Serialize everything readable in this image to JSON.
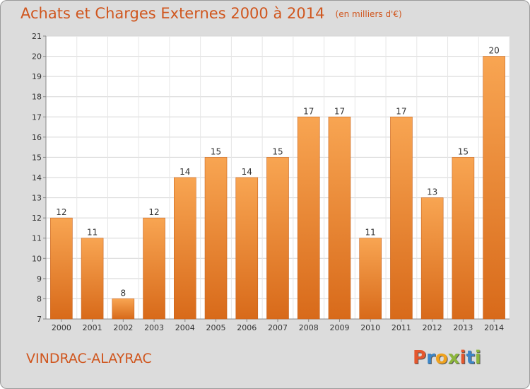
{
  "header": {
    "title": "Achats et Charges Externes 2000 à 2014",
    "subtitle": "(en milliers d'€)"
  },
  "footer": {
    "town": "VINDRAC-ALAYRAC",
    "logo_text": "Proxiti",
    "logo_colors": [
      "#e4572e",
      "#3c86c8",
      "#f0a21e",
      "#8cb63c",
      "#e4572e",
      "#3c86c8",
      "#8cb63c"
    ]
  },
  "colors": {
    "background": "#dcdcdc",
    "plot_background": "#ffffff",
    "bar_light": "#f8a552",
    "bar_dark": "#d86a1a",
    "title": "#d0561e"
  },
  "chart_data": {
    "type": "bar",
    "title": "Achats et Charges Externes 2000 à 2014",
    "subtitle": "(en milliers d'€)",
    "categories": [
      "2000",
      "2001",
      "2002",
      "2003",
      "2004",
      "2005",
      "2006",
      "2007",
      "2008",
      "2009",
      "2010",
      "2011",
      "2012",
      "2013",
      "2014"
    ],
    "values": [
      12,
      11,
      8,
      12,
      14,
      15,
      14,
      15,
      17,
      17,
      11,
      17,
      13,
      15,
      20
    ],
    "data_labels": [
      "12",
      "11",
      "8",
      "12",
      "14",
      "15",
      "14",
      "15",
      "17",
      "17",
      "11",
      "17",
      "13",
      "15",
      "20"
    ],
    "ylim": [
      7,
      21
    ],
    "yticks": [
      "7",
      "8",
      "9",
      "10",
      "11",
      "12",
      "13",
      "14",
      "15",
      "16",
      "17",
      "18",
      "19",
      "20",
      "21"
    ],
    "xlabel": "",
    "ylabel": "",
    "grid": true,
    "legend": "none"
  }
}
